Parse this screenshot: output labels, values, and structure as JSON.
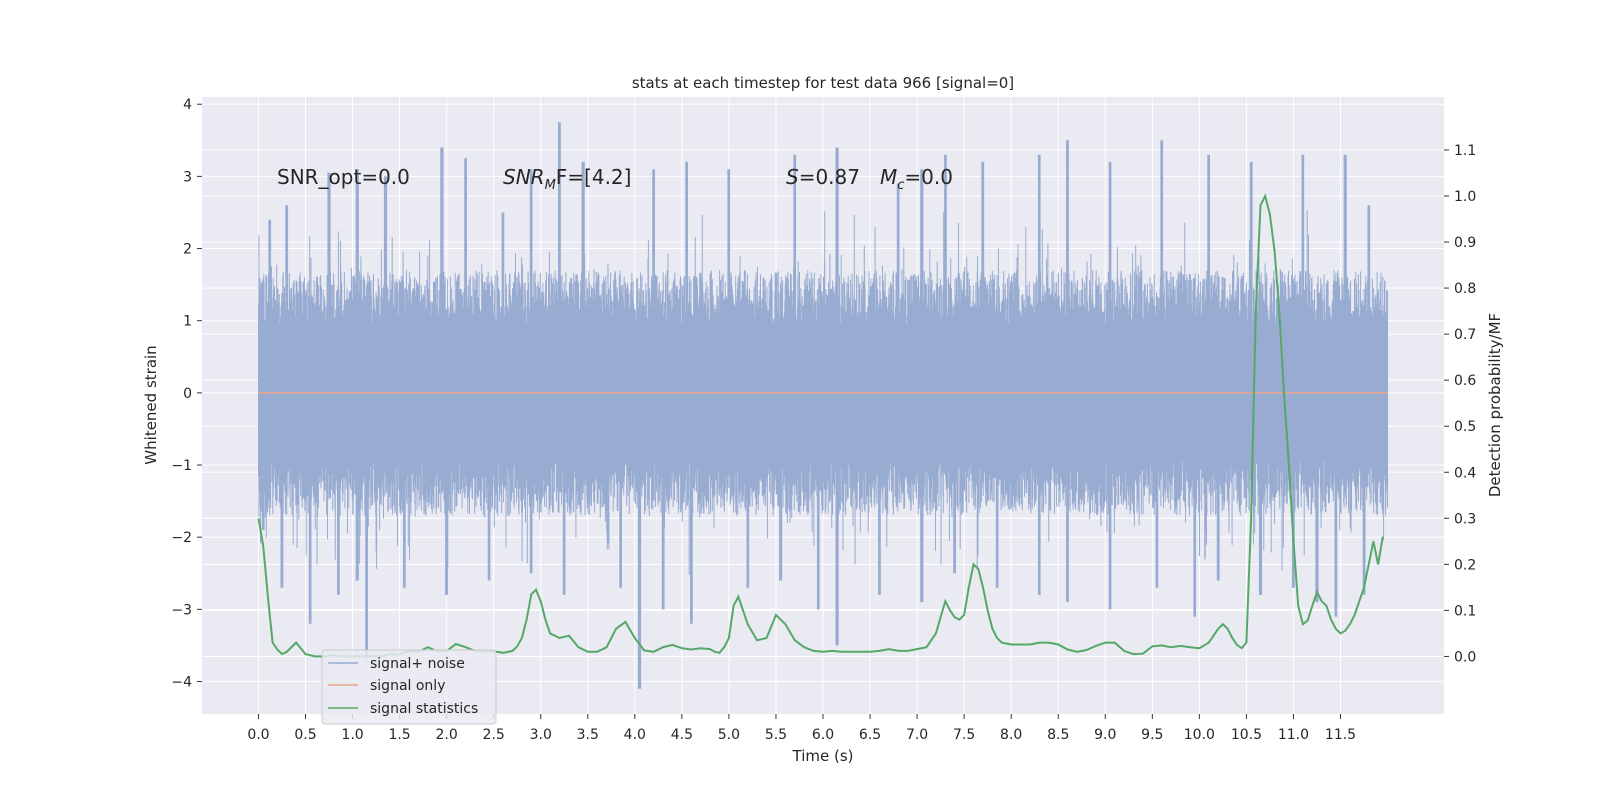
{
  "chart_data": {
    "type": "line",
    "title": "stats at each timestep for test data 966 [signal=0]",
    "xlabel": "Time (s)",
    "ylabel": "Whitened strain",
    "y2label": "Detection probability/MF",
    "xlim": [
      -0.6,
      12.6
    ],
    "ylim": [
      -4.45,
      4.1
    ],
    "y2lim": [
      -0.125,
      1.215
    ],
    "xticks": [
      0.0,
      0.5,
      1.0,
      1.5,
      2.0,
      2.5,
      3.0,
      3.5,
      4.0,
      4.5,
      5.0,
      5.5,
      6.0,
      6.5,
      7.0,
      7.5,
      8.0,
      8.5,
      9.0,
      9.5,
      10.0,
      10.5,
      11.0,
      11.5
    ],
    "xtick_labels": [
      "0.0",
      "0.5",
      "1.0",
      "1.5",
      "2.0",
      "2.5",
      "3.0",
      "3.5",
      "4.0",
      "4.5",
      "5.0",
      "5.5",
      "6.0",
      "6.5",
      "7.0",
      "7.5",
      "8.0",
      "8.5",
      "9.0",
      "9.5",
      "10.0",
      "10.5",
      "11.0",
      "11.5"
    ],
    "yticks": [
      4,
      3,
      2,
      1,
      0,
      -1,
      -2,
      -3,
      -4
    ],
    "ytick_labels": [
      "4",
      "3",
      "2",
      "1",
      "0",
      "−1",
      "−2",
      "−3",
      "−4"
    ],
    "y2ticks": [
      1.1,
      1.0,
      0.9,
      0.8,
      0.7,
      0.6,
      0.5,
      0.4,
      0.3,
      0.2,
      0.1,
      0.0
    ],
    "y2tick_labels": [
      "1.1",
      "1.0",
      "0.9",
      "0.8",
      "0.7",
      "0.6",
      "0.5",
      "0.4",
      "0.3",
      "0.2",
      "0.1",
      "0.0"
    ],
    "annotations": {
      "snr_opt": "SNR_opt=0.0",
      "snr_mf_sym": "SNR",
      "snr_mf_sub": "M",
      "snr_mf_rest": "F=[4.2]",
      "s_sym": "S",
      "s_rest": "=0.87",
      "mc_sym": "M",
      "mc_sub": "c",
      "mc_rest": "=0.0"
    },
    "series": [
      {
        "name": "signal+ noise",
        "color": "#98abd0",
        "kind": "noise",
        "duration": 12.0,
        "envelope_abs": 1.7,
        "peaks": [
          [
            0.12,
            2.4
          ],
          [
            0.3,
            2.6
          ],
          [
            0.75,
            3.05
          ],
          [
            1.05,
            3.1
          ],
          [
            1.35,
            3.0
          ],
          [
            1.95,
            3.4
          ],
          [
            2.2,
            3.25
          ],
          [
            2.6,
            2.5
          ],
          [
            2.9,
            3.1
          ],
          [
            3.2,
            3.75
          ],
          [
            3.45,
            3.2
          ],
          [
            4.2,
            3.1
          ],
          [
            4.55,
            3.2
          ],
          [
            5.0,
            3.1
          ],
          [
            5.7,
            3.3
          ],
          [
            6.15,
            3.4
          ],
          [
            6.8,
            2.9
          ],
          [
            7.05,
            3.1
          ],
          [
            7.3,
            3.3
          ],
          [
            7.7,
            3.2
          ],
          [
            8.3,
            3.3
          ],
          [
            8.6,
            3.5
          ],
          [
            9.05,
            3.2
          ],
          [
            9.6,
            3.5
          ],
          [
            10.1,
            3.3
          ],
          [
            10.55,
            3.2
          ],
          [
            11.1,
            3.3
          ],
          [
            11.55,
            3.3
          ],
          [
            11.8,
            2.6
          ]
        ],
        "troughs": [
          [
            0.05,
            -1.9
          ],
          [
            0.25,
            -2.7
          ],
          [
            0.55,
            -3.2
          ],
          [
            0.85,
            -2.8
          ],
          [
            1.05,
            -2.6
          ],
          [
            1.15,
            -3.7
          ],
          [
            1.55,
            -2.7
          ],
          [
            2.0,
            -2.8
          ],
          [
            2.45,
            -2.6
          ],
          [
            2.9,
            -2.5
          ],
          [
            3.25,
            -2.8
          ],
          [
            3.85,
            -2.7
          ],
          [
            4.05,
            -4.1
          ],
          [
            4.3,
            -3.0
          ],
          [
            4.6,
            -3.2
          ],
          [
            5.2,
            -2.7
          ],
          [
            5.55,
            -2.6
          ],
          [
            5.95,
            -3.0
          ],
          [
            6.15,
            -3.5
          ],
          [
            6.6,
            -2.8
          ],
          [
            7.05,
            -2.9
          ],
          [
            7.4,
            -2.5
          ],
          [
            7.85,
            -2.7
          ],
          [
            8.3,
            -2.8
          ],
          [
            8.6,
            -2.9
          ],
          [
            9.05,
            -3.0
          ],
          [
            9.55,
            -2.7
          ],
          [
            9.95,
            -3.1
          ],
          [
            10.2,
            -2.6
          ],
          [
            10.65,
            -2.8
          ],
          [
            11.0,
            -2.7
          ],
          [
            11.25,
            -2.9
          ],
          [
            11.45,
            -3.1
          ],
          [
            11.75,
            -2.8
          ]
        ]
      },
      {
        "name": "signal only",
        "color": "#e8a58a",
        "kind": "line",
        "x": [
          0.0,
          12.0
        ],
        "y": [
          0.0,
          0.0
        ]
      },
      {
        "name": "signal statistics",
        "color": "#55a868",
        "kind": "line",
        "axis": "right",
        "x": [
          0.0,
          0.05,
          0.1,
          0.15,
          0.2,
          0.25,
          0.3,
          0.4,
          0.5,
          0.6,
          0.7,
          0.8,
          0.9,
          1.0,
          1.1,
          1.2,
          1.3,
          1.4,
          1.5,
          1.6,
          1.7,
          1.8,
          1.9,
          2.0,
          2.1,
          2.2,
          2.3,
          2.4,
          2.5,
          2.6,
          2.7,
          2.75,
          2.8,
          2.85,
          2.9,
          2.95,
          3.0,
          3.05,
          3.1,
          3.15,
          3.2,
          3.3,
          3.4,
          3.5,
          3.6,
          3.7,
          3.8,
          3.9,
          4.0,
          4.1,
          4.2,
          4.3,
          4.4,
          4.5,
          4.6,
          4.7,
          4.8,
          4.85,
          4.9,
          4.95,
          5.0,
          5.05,
          5.1,
          5.2,
          5.3,
          5.4,
          5.5,
          5.6,
          5.7,
          5.8,
          5.9,
          6.0,
          6.1,
          6.2,
          6.3,
          6.4,
          6.5,
          6.6,
          6.7,
          6.8,
          6.9,
          7.0,
          7.1,
          7.2,
          7.3,
          7.35,
          7.4,
          7.45,
          7.5,
          7.55,
          7.6,
          7.65,
          7.7,
          7.75,
          7.8,
          7.85,
          7.9,
          8.0,
          8.1,
          8.2,
          8.3,
          8.4,
          8.5,
          8.6,
          8.7,
          8.8,
          8.9,
          9.0,
          9.1,
          9.2,
          9.3,
          9.4,
          9.5,
          9.6,
          9.7,
          9.8,
          9.9,
          10.0,
          10.1,
          10.2,
          10.25,
          10.3,
          10.35,
          10.4,
          10.45,
          10.5,
          10.55,
          10.6,
          10.65,
          10.7,
          10.75,
          10.8,
          10.85,
          10.9,
          10.95,
          11.0,
          11.05,
          11.1,
          11.15,
          11.2,
          11.25,
          11.3,
          11.35,
          11.4,
          11.45,
          11.5,
          11.55,
          11.6,
          11.65,
          11.7,
          11.75,
          11.8,
          11.85,
          11.9,
          11.95
        ],
        "y": [
          0.3,
          0.24,
          0.13,
          0.03,
          0.015,
          0.005,
          0.01,
          0.03,
          0.005,
          0.0,
          0.0,
          0.003,
          0.0,
          0.0,
          0.0,
          0.001,
          0.0,
          0.005,
          0.004,
          0.012,
          0.01,
          0.02,
          0.011,
          0.012,
          0.027,
          0.02,
          0.012,
          0.01,
          0.011,
          0.008,
          0.012,
          0.022,
          0.04,
          0.08,
          0.135,
          0.145,
          0.12,
          0.08,
          0.05,
          0.045,
          0.04,
          0.045,
          0.02,
          0.01,
          0.01,
          0.02,
          0.06,
          0.075,
          0.04,
          0.013,
          0.01,
          0.02,
          0.025,
          0.018,
          0.015,
          0.018,
          0.016,
          0.01,
          0.008,
          0.02,
          0.04,
          0.11,
          0.13,
          0.07,
          0.035,
          0.04,
          0.09,
          0.07,
          0.035,
          0.02,
          0.012,
          0.01,
          0.012,
          0.01,
          0.01,
          0.01,
          0.01,
          0.012,
          0.016,
          0.012,
          0.012,
          0.016,
          0.02,
          0.05,
          0.12,
          0.1,
          0.085,
          0.08,
          0.09,
          0.15,
          0.2,
          0.19,
          0.15,
          0.1,
          0.06,
          0.04,
          0.03,
          0.026,
          0.026,
          0.026,
          0.03,
          0.03,
          0.026,
          0.015,
          0.01,
          0.014,
          0.023,
          0.03,
          0.03,
          0.012,
          0.005,
          0.006,
          0.022,
          0.024,
          0.02,
          0.023,
          0.02,
          0.018,
          0.03,
          0.06,
          0.07,
          0.06,
          0.04,
          0.025,
          0.018,
          0.03,
          0.3,
          0.75,
          0.98,
          1.0,
          0.96,
          0.88,
          0.75,
          0.57,
          0.42,
          0.25,
          0.11,
          0.07,
          0.078,
          0.11,
          0.14,
          0.12,
          0.11,
          0.08,
          0.06,
          0.05,
          0.056,
          0.07,
          0.09,
          0.12,
          0.15,
          0.2,
          0.25,
          0.2,
          0.26
        ]
      }
    ],
    "legend": {
      "position": "lower-left",
      "entries": [
        {
          "label": "signal+ noise",
          "color": "#98abd0"
        },
        {
          "label": "signal only",
          "color": "#e8a58a"
        },
        {
          "label": "signal statistics",
          "color": "#55a868"
        }
      ]
    },
    "grid": true,
    "background": "#eaeaf2"
  }
}
